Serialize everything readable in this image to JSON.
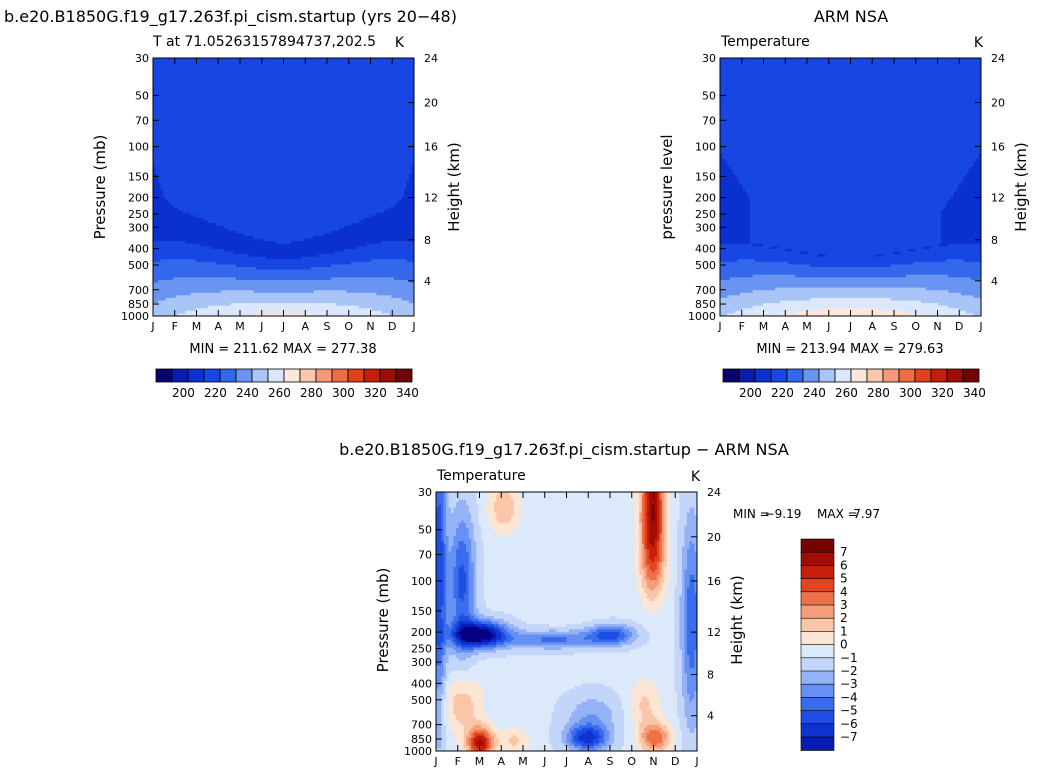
{
  "chart_data": [
    {
      "type": "heatmap",
      "id": "model",
      "title": "b.e20.B1850G.f19_g17.263f.pi_cism.startup (yrs 20−48)",
      "subtitle": "T at 71.05263157894737,202.5",
      "corner_label": "K",
      "xlabel": "",
      "ylabel": "Pressure  (mb)",
      "ylabel_right": "Height  (km)",
      "x_ticks": [
        "J",
        "F",
        "M",
        "A",
        "M",
        "J",
        "J",
        "A",
        "S",
        "O",
        "N",
        "D",
        "J"
      ],
      "y_ticks": [
        "30",
        "50",
        "70",
        "100",
        "150",
        "200",
        "250",
        "300",
        "400",
        "500",
        "700",
        "850",
        "1000"
      ],
      "height_ticks": [
        "24",
        "20",
        "16",
        "12",
        "8",
        "4"
      ],
      "stats": "MIN = 211.62  MAX = 277.38",
      "min": 211.62,
      "max": 277.38,
      "colorbar_labels": [
        "200",
        "220",
        "240",
        "260",
        "280",
        "300",
        "320",
        "340"
      ],
      "colorbar_levels": [
        190,
        200,
        210,
        220,
        230,
        240,
        250,
        260,
        270,
        280,
        290,
        300,
        310,
        320,
        330,
        340,
        350
      ]
    },
    {
      "type": "heatmap",
      "id": "obs",
      "title": "ARM NSA",
      "subtitle": "Temperature",
      "corner_label": "K",
      "xlabel": "",
      "ylabel": "pressure  level",
      "ylabel_right": "Height  (km)",
      "x_ticks": [
        "J",
        "F",
        "M",
        "A",
        "M",
        "J",
        "J",
        "A",
        "S",
        "O",
        "N",
        "D",
        "J"
      ],
      "y_ticks": [
        "30",
        "50",
        "70",
        "100",
        "150",
        "200",
        "250",
        "300",
        "400",
        "500",
        "700",
        "850",
        "1000"
      ],
      "height_ticks": [
        "24",
        "20",
        "16",
        "12",
        "8",
        "4"
      ],
      "stats": "MIN = 213.94  MAX = 279.63",
      "min": 213.94,
      "max": 279.63,
      "colorbar_labels": [
        "200",
        "220",
        "240",
        "260",
        "280",
        "300",
        "320",
        "340"
      ],
      "colorbar_levels": [
        190,
        200,
        210,
        220,
        230,
        240,
        250,
        260,
        270,
        280,
        290,
        300,
        310,
        320,
        330,
        340,
        350
      ]
    },
    {
      "type": "heatmap",
      "id": "diff",
      "title": "b.e20.B1850G.f19_g17.263f.pi_cism.startup − ARM NSA",
      "subtitle": "Temperature",
      "corner_label": "K",
      "xlabel": "",
      "ylabel": "Pressure  (mb)",
      "ylabel_right": "Height  (km)",
      "x_ticks": [
        "J",
        "F",
        "M",
        "A",
        "M",
        "J",
        "J",
        "A",
        "S",
        "O",
        "N",
        "D",
        "J"
      ],
      "y_ticks": [
        "30",
        "50",
        "70",
        "100",
        "150",
        "200",
        "250",
        "300",
        "400",
        "500",
        "700",
        "850",
        "1000"
      ],
      "height_ticks": [
        "24",
        "20",
        "16",
        "12",
        "8",
        "4"
      ],
      "stats_min_label": "MIN =",
      "stats_min": "−9.19",
      "stats_max_label": "MAX =",
      "stats_max": "7.97",
      "min": -9.19,
      "max": 7.97,
      "colorbar_labels": [
        "7",
        "6",
        "5",
        "4",
        "3",
        "2",
        "1",
        "0",
        "−1",
        "−2",
        "−3",
        "−4",
        "−5",
        "−6",
        "−7"
      ]
    }
  ],
  "colors": {
    "temp_palette": [
      "#08006e",
      "#0a1bb0",
      "#0b31d0",
      "#1846e2",
      "#3468ec",
      "#6a94f2",
      "#a9c4f7",
      "#dbe8fb",
      "#fde7da",
      "#fac6ac",
      "#f59a78",
      "#ee6c46",
      "#e1401c",
      "#c41e0a",
      "#9b0d06",
      "#700303"
    ],
    "diff_palette": [
      "#050083",
      "#0a1bb5",
      "#0e33d2",
      "#1e4de3",
      "#3b6ced",
      "#6690f2",
      "#94b2f5",
      "#c3d6f9",
      "#dce9fb",
      "#fde5d4",
      "#f9c6aa",
      "#f49e7a",
      "#ee7149",
      "#e2441d",
      "#c81e09",
      "#a10c05",
      "#770202"
    ]
  }
}
